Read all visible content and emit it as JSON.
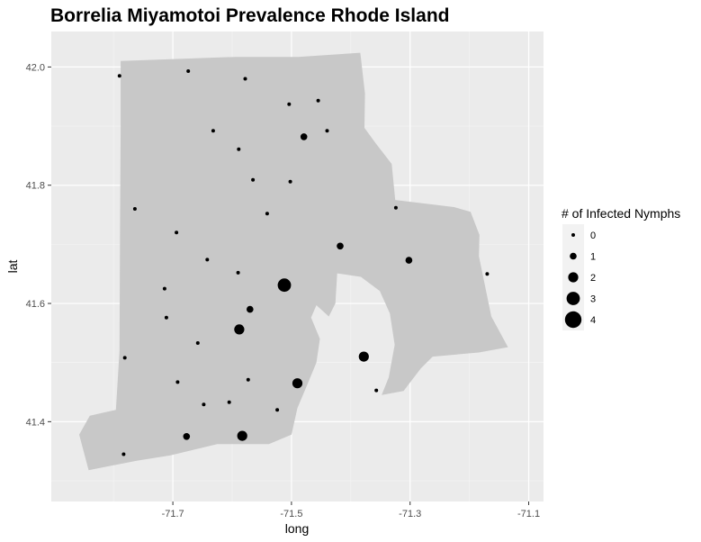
{
  "chart_data": {
    "type": "scatter",
    "title": "Borrelia Miyamotoi Prevalence Rhode Island",
    "xlabel": "long",
    "ylabel": "lat",
    "xlim": [
      -71.905,
      -71.075
    ],
    "ylim": [
      41.265,
      42.06
    ],
    "x_ticks": [
      -71.7,
      -71.5,
      -71.3,
      -71.1
    ],
    "x_tick_labels": [
      "-71.7",
      "-71.5",
      "-71.3",
      "-71.1"
    ],
    "y_ticks": [
      41.4,
      41.6,
      41.8,
      42.0
    ],
    "y_tick_labels": [
      "41.4",
      "41.6",
      "41.8",
      "42.0"
    ],
    "grid": true,
    "panel_background": "#ebebeb",
    "region_fill": "#c8c8c8",
    "point_color": "#000000",
    "region_outline": [
      [
        -71.788,
        42.01
      ],
      [
        -71.595,
        42.017
      ],
      [
        -71.489,
        42.017
      ],
      [
        -71.384,
        42.024
      ],
      [
        -71.376,
        41.955
      ],
      [
        -71.377,
        41.897
      ],
      [
        -71.358,
        41.871
      ],
      [
        -71.331,
        41.836
      ],
      [
        -71.325,
        41.775
      ],
      [
        -71.226,
        41.763
      ],
      [
        -71.198,
        41.755
      ],
      [
        -71.183,
        41.716
      ],
      [
        -71.184,
        41.68
      ],
      [
        -71.163,
        41.578
      ],
      [
        -71.135,
        41.526
      ],
      [
        -71.184,
        41.517
      ],
      [
        -71.262,
        41.51
      ],
      [
        -71.282,
        41.49
      ],
      [
        -71.311,
        41.452
      ],
      [
        -71.348,
        41.445
      ],
      [
        -71.336,
        41.475
      ],
      [
        -71.326,
        41.53
      ],
      [
        -71.334,
        41.583
      ],
      [
        -71.351,
        41.621
      ],
      [
        -71.383,
        41.645
      ],
      [
        -71.423,
        41.651
      ],
      [
        -71.426,
        41.6
      ],
      [
        -71.437,
        41.578
      ],
      [
        -71.458,
        41.597
      ],
      [
        -71.467,
        41.576
      ],
      [
        -71.452,
        41.54
      ],
      [
        -71.458,
        41.5
      ],
      [
        -71.472,
        41.466
      ],
      [
        -71.49,
        41.423
      ],
      [
        -71.5,
        41.378
      ],
      [
        -71.538,
        41.362
      ],
      [
        -71.625,
        41.362
      ],
      [
        -71.704,
        41.343
      ],
      [
        -71.761,
        41.334
      ],
      [
        -71.842,
        41.318
      ],
      [
        -71.858,
        41.378
      ],
      [
        -71.84,
        41.41
      ],
      [
        -71.796,
        41.42
      ],
      [
        -71.79,
        41.52
      ],
      [
        -71.789,
        41.725
      ],
      [
        -71.788,
        41.9
      ]
    ],
    "legend_title": "# of Infected Nymphs",
    "legend_position": "right",
    "legend_items": [
      {
        "label": "0",
        "value": 0
      },
      {
        "label": "1",
        "value": 1
      },
      {
        "label": "2",
        "value": 2
      },
      {
        "label": "3",
        "value": 3
      },
      {
        "label": "4",
        "value": 4
      }
    ],
    "points": [
      {
        "x": -71.79,
        "y": 41.985,
        "value": 0
      },
      {
        "x": -71.674,
        "y": 41.993,
        "value": 0
      },
      {
        "x": -71.578,
        "y": 41.98,
        "value": 0
      },
      {
        "x": -71.504,
        "y": 41.937,
        "value": 0
      },
      {
        "x": -71.455,
        "y": 41.943,
        "value": 0
      },
      {
        "x": -71.632,
        "y": 41.892,
        "value": 0
      },
      {
        "x": -71.44,
        "y": 41.892,
        "value": 0
      },
      {
        "x": -71.479,
        "y": 41.882,
        "value": 1
      },
      {
        "x": -71.589,
        "y": 41.861,
        "value": 0
      },
      {
        "x": -71.565,
        "y": 41.809,
        "value": 0
      },
      {
        "x": -71.502,
        "y": 41.806,
        "value": 0
      },
      {
        "x": -71.764,
        "y": 41.76,
        "value": 0
      },
      {
        "x": -71.541,
        "y": 41.752,
        "value": 0
      },
      {
        "x": -71.324,
        "y": 41.762,
        "value": 0
      },
      {
        "x": -71.694,
        "y": 41.72,
        "value": 0
      },
      {
        "x": -71.418,
        "y": 41.697,
        "value": 1
      },
      {
        "x": -71.642,
        "y": 41.674,
        "value": 0
      },
      {
        "x": -71.302,
        "y": 41.673,
        "value": 1
      },
      {
        "x": -71.59,
        "y": 41.652,
        "value": 0
      },
      {
        "x": -71.17,
        "y": 41.65,
        "value": 0
      },
      {
        "x": -71.512,
        "y": 41.631,
        "value": 3
      },
      {
        "x": -71.714,
        "y": 41.625,
        "value": 0
      },
      {
        "x": -71.57,
        "y": 41.59,
        "value": 1
      },
      {
        "x": -71.711,
        "y": 41.576,
        "value": 0
      },
      {
        "x": -71.588,
        "y": 41.556,
        "value": 2
      },
      {
        "x": -71.658,
        "y": 41.533,
        "value": 0
      },
      {
        "x": -71.378,
        "y": 41.51,
        "value": 2
      },
      {
        "x": -71.781,
        "y": 41.508,
        "value": 0
      },
      {
        "x": -71.573,
        "y": 41.471,
        "value": 0
      },
      {
        "x": -71.692,
        "y": 41.467,
        "value": 0
      },
      {
        "x": -71.49,
        "y": 41.465,
        "value": 2
      },
      {
        "x": -71.357,
        "y": 41.453,
        "value": 0
      },
      {
        "x": -71.605,
        "y": 41.433,
        "value": 0
      },
      {
        "x": -71.648,
        "y": 41.429,
        "value": 0
      },
      {
        "x": -71.524,
        "y": 41.42,
        "value": 0
      },
      {
        "x": -71.677,
        "y": 41.375,
        "value": 1
      },
      {
        "x": -71.583,
        "y": 41.376,
        "value": 2
      },
      {
        "x": -71.783,
        "y": 41.345,
        "value": 0
      }
    ]
  }
}
